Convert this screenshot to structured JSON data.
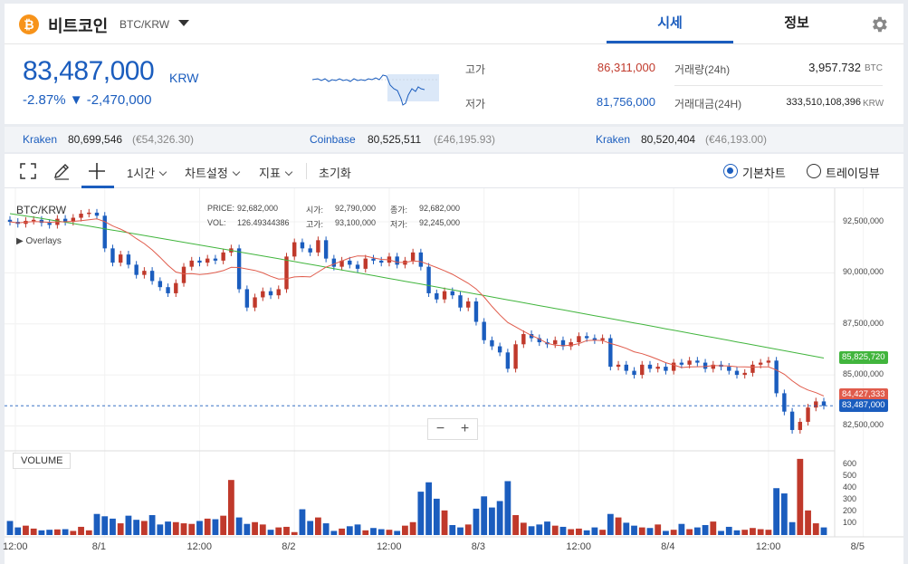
{
  "header": {
    "coin_symbol": "₿",
    "coin_name": "비트코인",
    "pair": "BTC/KRW",
    "tabs": [
      {
        "label": "시세",
        "active": true
      },
      {
        "label": "정보",
        "active": false
      }
    ],
    "settings_icon": "gear-icon"
  },
  "ticker": {
    "price": "83,487,000",
    "unit": "KRW",
    "change": "-2.87% ▼ -2,470,000",
    "color": "#1b5dbe"
  },
  "stats": {
    "high_label": "고가",
    "high_value": "86,311,000",
    "low_label": "저가",
    "low_value": "81,756,000",
    "volume_label": "거래량(24h)",
    "volume_value": "3,957.732",
    "volume_unit": "BTC",
    "amount_label": "거래대금(24H)",
    "amount_value": "333,510,108,396",
    "amount_unit": "KRW",
    "up_color": "#c0392b",
    "down_color": "#1b5dbe"
  },
  "exchanges": [
    {
      "name": "Kraken",
      "value": "80,699,546",
      "sub": "(€54,326.30)"
    },
    {
      "name": "Coinbase",
      "value": "80,525,511",
      "sub": "(£46,195.93)"
    },
    {
      "name": "Kraken",
      "value": "80,520,404",
      "sub": "(€46,193.00)"
    }
  ],
  "toolbar": {
    "interval": "1시간",
    "chart_settings": "차트설정",
    "indicators": "지표",
    "reset": "초기화",
    "view_basic": "기본차트",
    "view_tv": "트레이딩뷰"
  },
  "legend": {
    "pair": "BTC/KRW",
    "overlays": "Overlays",
    "price_label": "PRICE:",
    "price": "92,682,000",
    "vol_label": "VOL:",
    "vol": "126.49344386",
    "open_label": "시가:",
    "open": "92,790,000",
    "high_label": "고가:",
    "high": "93,100,000",
    "close_label": "종가:",
    "close": "92,682,000",
    "low_label": "저가:",
    "low": "92,245,000"
  },
  "zoom": {
    "minus": "−",
    "plus": "+"
  },
  "volume_label": "VOLUME",
  "price_tags": {
    "ma_long": "85,825,720",
    "ma_short": "84,427,333",
    "current": "83,487,000"
  },
  "colors": {
    "up": "#c0392b",
    "down": "#1b5dbe",
    "ma_long": "#41b53d",
    "ma_short": "#e05b4b"
  },
  "chart_data": {
    "type": "candlestick",
    "y_ticks": [
      "92,500,000",
      "90,000,000",
      "87,500,000",
      "85,000,000",
      "82,500,000"
    ],
    "y_tick_values": [
      92500000,
      90000000,
      87500000,
      85000000,
      82500000
    ],
    "volume_ticks": [
      "600",
      "500",
      "400",
      "300",
      "200",
      "100"
    ],
    "volume_tick_values": [
      600,
      500,
      400,
      300,
      200,
      100
    ],
    "x_labels": [
      "12:00",
      "8/1",
      "12:00",
      "8/2",
      "12:00",
      "8/3",
      "12:00",
      "8/4",
      "12:00",
      "8/5"
    ],
    "ylim": [
      81500000,
      93700000
    ],
    "vol_ylim": [
      0,
      680
    ],
    "close": [
      92500000,
      92400000,
      92550000,
      92600000,
      92450000,
      92350000,
      92650000,
      92500000,
      92700000,
      92900000,
      92950000,
      92800000,
      91200000,
      90500000,
      90900000,
      90400000,
      89900000,
      90100000,
      89600000,
      89300000,
      89000000,
      89500000,
      90300000,
      90600000,
      90500000,
      90700000,
      90600000,
      91000000,
      91200000,
      89200000,
      88300000,
      88800000,
      89100000,
      88900000,
      89200000,
      90800000,
      91500000,
      91200000,
      91000000,
      91600000,
      90700000,
      90300000,
      90600000,
      90400000,
      90200000,
      90700000,
      90600000,
      90500000,
      90800000,
      90400000,
      90600000,
      91000000,
      90300000,
      89000000,
      88700000,
      89100000,
      88900000,
      88300000,
      88600000,
      87600000,
      86700000,
      86400000,
      86100000,
      85300000,
      86500000,
      87000000,
      86800000,
      86600000,
      86500000,
      86700000,
      86400000,
      86600000,
      86900000,
      86800000,
      86700000,
      86800000,
      85400000,
      85500000,
      85200000,
      85000000,
      85500000,
      85300000,
      85400000,
      85200000,
      85600000,
      85500000,
      85700000,
      85600000,
      85300000,
      85500000,
      85400000,
      85200000,
      85000000,
      85100000,
      85500000,
      85600000,
      85700000,
      84100000,
      83200000,
      82300000,
      82700000,
      83400000,
      83700000,
      83487000
    ],
    "volume": [
      120,
      65,
      80,
      55,
      40,
      45,
      48,
      50,
      35,
      70,
      40,
      180,
      160,
      140,
      100,
      165,
      130,
      120,
      170,
      90,
      115,
      110,
      100,
      95,
      120,
      140,
      135,
      165,
      470,
      150,
      95,
      110,
      90,
      45,
      65,
      70,
      25,
      220,
      120,
      150,
      100,
      35,
      55,
      75,
      90,
      40,
      60,
      50,
      45,
      35,
      80,
      110,
      370,
      450,
      310,
      210,
      85,
      65,
      90,
      225,
      330,
      235,
      290,
      460,
      170,
      105,
      75,
      90,
      115,
      80,
      70,
      50,
      55,
      40,
      65,
      45,
      180,
      150,
      105,
      80,
      65,
      60,
      90,
      35,
      45,
      95,
      50,
      65,
      85,
      115,
      35,
      70,
      40,
      45,
      60,
      50,
      45,
      400,
      355,
      110,
      650,
      210,
      100,
      65
    ]
  }
}
